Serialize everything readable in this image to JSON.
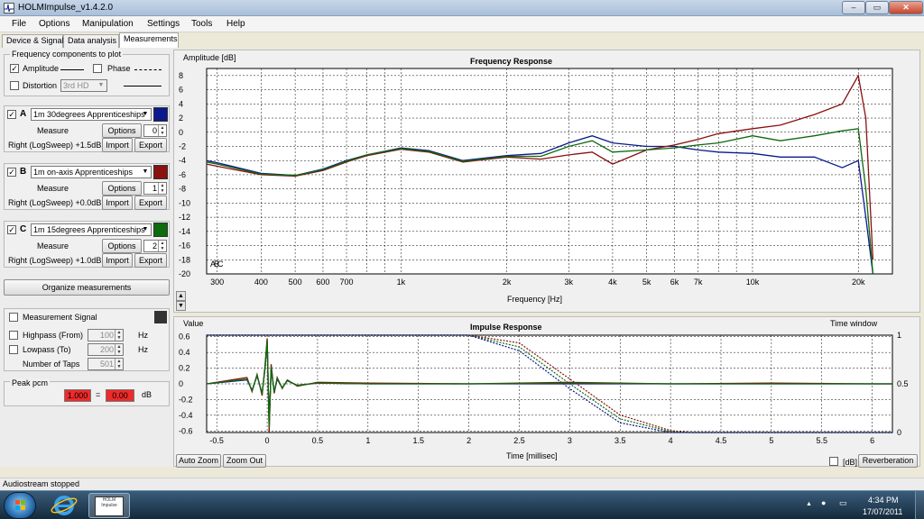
{
  "window": {
    "title": "HOLMImpulse_v1.4.2.0"
  },
  "menu": [
    "File",
    "Options",
    "Manipulation",
    "Settings",
    "Tools",
    "Help"
  ],
  "tabs": [
    "Device & Signal",
    "Data analysis",
    "Measurements"
  ],
  "freq_components": {
    "group_label": "Frequency components to plot",
    "amplitude_label": "Amplitude",
    "phase_label": "Phase",
    "distortion_label": "Distortion",
    "distortion_select": "3rd HD"
  },
  "measurements": [
    {
      "letter": "A",
      "name": "1m 30degrees Apprenticeships",
      "color": "#0a1a8c",
      "measure": "Measure",
      "options": "Options",
      "spin": "0",
      "info": "Right (LogSweep) +1.5dB",
      "import": "Import",
      "export": "Export"
    },
    {
      "letter": "B",
      "name": "1m on-axis Apprenticeships",
      "color": "#8b1010",
      "measure": "Measure",
      "options": "Options",
      "spin": "1",
      "info": "Right (LogSweep) +0.0dB",
      "import": "Import",
      "export": "Export"
    },
    {
      "letter": "C",
      "name": "1m 15degrees Apprenticeships",
      "color": "#0d6a0d",
      "measure": "Measure",
      "options": "Options",
      "spin": "2",
      "info": "Right (LogSweep) +1.0dB",
      "import": "Import",
      "export": "Export"
    }
  ],
  "organize_button": "Organize measurements",
  "measurement_signal": {
    "label": "Measurement Signal",
    "highpass_label": "Highpass (From)",
    "highpass_value": "100",
    "highpass_unit": "Hz",
    "lowpass_label": "Lowpass (To)",
    "lowpass_value": "200",
    "lowpass_unit": "Hz",
    "taps_label": "Number of Taps",
    "taps_value": "501"
  },
  "peak": {
    "label": "Peak pcm",
    "value1": "1.000",
    "equals": "=",
    "value2": "0.00",
    "unit": "dB"
  },
  "status": "Audiostream stopped",
  "freq_graph": {
    "title": "Frequency Response",
    "ylabel": "Amplitude [dB]",
    "xlabel": "Frequency [Hz]",
    "y_ticks": [
      "8",
      "6",
      "4",
      "2",
      "0",
      "-2",
      "-4",
      "-6",
      "-8",
      "-10",
      "-12",
      "-14",
      "-16",
      "-18",
      "-20"
    ],
    "x_ticks": [
      "300",
      "400",
      "500",
      "600",
      "700",
      "1k",
      "2k",
      "3k",
      "4k",
      "5k",
      "6k",
      "7k",
      "10k",
      "20k"
    ],
    "legend": [
      "A",
      "B",
      "C"
    ]
  },
  "impulse_graph": {
    "title": "Impulse Response",
    "ylabel": "Value",
    "xlabel": "Time [millisec]",
    "window_label": "Time window",
    "y_ticks": [
      "0.6",
      "0.4",
      "0.2",
      "0",
      "-0.2",
      "-0.4",
      "-0.6"
    ],
    "y2_ticks": [
      "1",
      "0.5",
      "0"
    ],
    "x_ticks": [
      "-0.5",
      "0",
      "0.5",
      "1",
      "1.5",
      "2",
      "2.5",
      "3",
      "3.5",
      "4",
      "4.5",
      "5",
      "5.5",
      "6"
    ],
    "auto_zoom": "Auto Zoom",
    "zoom_out": "Zoom Out",
    "db_label": "[dB]",
    "reverberation": "Reverberation"
  },
  "chart_data": [
    {
      "type": "line",
      "title": "Frequency Response",
      "xlabel": "Frequency [Hz]",
      "ylabel": "Amplitude [dB]",
      "x_scale": "log",
      "xlim": [
        280,
        25000
      ],
      "ylim": [
        -20,
        9
      ],
      "grid": true,
      "x": [
        280,
        300,
        400,
        500,
        600,
        700,
        800,
        1000,
        1200,
        1500,
        2000,
        2500,
        3000,
        3500,
        4000,
        5000,
        6000,
        7000,
        8000,
        10000,
        12000,
        15000,
        18000,
        20000,
        21000,
        22000
      ],
      "series": [
        {
          "name": "A",
          "color": "#0a1a8c",
          "values": [
            -4,
            -4.3,
            -5.8,
            -6.1,
            -5.2,
            -4,
            -3.2,
            -2.2,
            -2.6,
            -4,
            -3.3,
            -3,
            -1.5,
            -0.5,
            -1.5,
            -2,
            -2,
            -2.5,
            -2.8,
            -3,
            -3.5,
            -3.5,
            -5,
            -4,
            -12,
            -20
          ]
        },
        {
          "name": "B",
          "color": "#8b1010",
          "values": [
            -4.5,
            -4.8,
            -6,
            -6.2,
            -5.4,
            -4.2,
            -3.3,
            -2.4,
            -2.8,
            -4.2,
            -3.5,
            -3.8,
            -3.2,
            -2.8,
            -4.5,
            -2.5,
            -1.8,
            -1,
            -0.2,
            0.5,
            1,
            2.5,
            4,
            8,
            2,
            -18
          ]
        },
        {
          "name": "C",
          "color": "#0d6a0d",
          "values": [
            -4.2,
            -4.5,
            -5.9,
            -6.1,
            -5.3,
            -4.1,
            -3.2,
            -2.3,
            -2.7,
            -4.1,
            -3.4,
            -3.4,
            -2,
            -1.2,
            -2.8,
            -2.5,
            -2.2,
            -1.8,
            -1.5,
            -0.5,
            -1.2,
            -0.5,
            0.2,
            0.5,
            -8,
            -20
          ]
        }
      ]
    },
    {
      "type": "line",
      "title": "Impulse Response",
      "xlabel": "Time [millisec]",
      "ylabel": "Value",
      "xlim": [
        -0.6,
        6.2
      ],
      "ylim": [
        -0.62,
        0.62
      ],
      "y2lim": [
        0,
        1
      ],
      "grid": true,
      "impulse": {
        "x": [
          -0.6,
          -0.2,
          -0.15,
          -0.1,
          -0.05,
          -0.02,
          0,
          0.02,
          0.04,
          0.07,
          0.1,
          0.15,
          0.2,
          0.3,
          0.5,
          1,
          2,
          3,
          4,
          5,
          6,
          6.2
        ],
        "series": [
          {
            "name": "A",
            "color": "#0a1a8c",
            "values": [
              0,
              0.05,
              -0.08,
              0.1,
              -0.12,
              0.2,
              0.55,
              -0.5,
              0.2,
              -0.1,
              0.06,
              -0.05,
              0.04,
              -0.02,
              0.01,
              0,
              0,
              0,
              0,
              0,
              0,
              0
            ]
          },
          {
            "name": "B",
            "color": "#8b1010",
            "values": [
              0,
              0.08,
              -0.1,
              0.12,
              -0.15,
              0.25,
              0.58,
              -0.62,
              0.25,
              -0.12,
              0.08,
              -0.06,
              0.05,
              -0.03,
              0.02,
              0.01,
              0,
              0.02,
              0,
              0.01,
              0,
              0
            ]
          },
          {
            "name": "C",
            "color": "#0d6a0d",
            "values": [
              0,
              0.06,
              -0.09,
              0.11,
              -0.13,
              0.22,
              0.56,
              -0.56,
              0.22,
              -0.11,
              0.07,
              -0.05,
              0.04,
              -0.02,
              0.01,
              0,
              0,
              0.01,
              0,
              0,
              0,
              0
            ]
          }
        ]
      },
      "time_window": {
        "x": [
          -0.6,
          2.0,
          2.5,
          3.0,
          3.5,
          4.0,
          4.2,
          6.2
        ],
        "series": [
          {
            "name": "B",
            "color": "#8b1010",
            "values": [
              1,
              1,
              0.92,
              0.55,
              0.18,
              0.02,
              0,
              0
            ]
          },
          {
            "name": "C",
            "color": "#0d6a0d",
            "values": [
              1,
              1,
              0.88,
              0.5,
              0.14,
              0.01,
              0,
              0
            ]
          },
          {
            "name": "A",
            "color": "#0a1a8c",
            "values": [
              1,
              1,
              0.84,
              0.45,
              0.1,
              0,
              0,
              0
            ]
          }
        ]
      }
    }
  ],
  "taskbar": {
    "time": "4:34 PM",
    "date": "17/07/2011",
    "app_thumb": "HOLM Impulse"
  }
}
